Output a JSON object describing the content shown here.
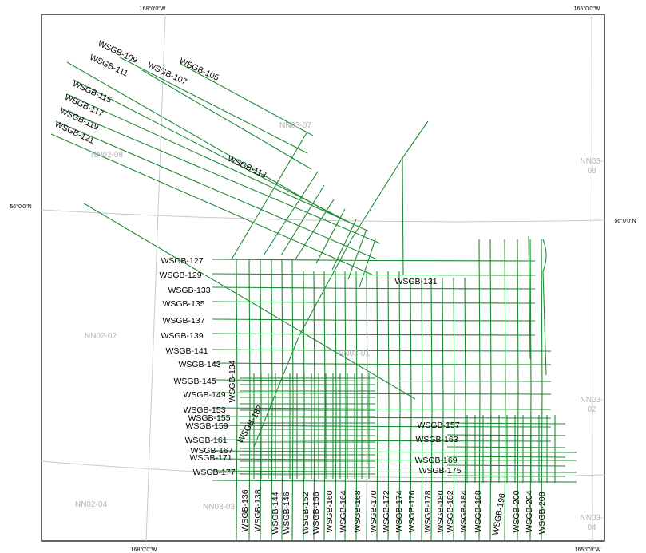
{
  "map": {
    "track_color": "#1f8a34",
    "grid_color": "#c8c8c8",
    "coords": {
      "top_left": "168°0'0\"W",
      "top_right": "165°0'0\"W",
      "bottom_left": "168°0'0\"W",
      "bottom_right": "165°0'0\"W",
      "lat_left": "56°0'0\"N",
      "lat_right": "56°0'0\"N"
    },
    "zones": {
      "nn03_07": "NN03-07",
      "nn02_08": "NN02-08",
      "nn03_08_a": "NN03-",
      "nn03_08_b": "08",
      "nn02_02": "NN02-02",
      "nn03_01": "NN03-01",
      "nn03_02_a": "NN03-",
      "nn03_02_b": "02",
      "nn02_04": "NN02-04",
      "nn03_03": "NN03-03",
      "nn03_04_a": "NN03-",
      "nn03_04_b": "04"
    },
    "track_labels": {
      "wsgb_105": "WSGB-105",
      "wsgb_107": "WSGB-107",
      "wsgb_109": "WSGB-109",
      "wsgb_111": "WSGB-111",
      "wsgb_113": "WSGB-113",
      "wsgb_115": "WSGB-115",
      "wsgb_117": "WSGB-117",
      "wsgb_119": "WSGB-119",
      "wsgb_121": "WSGB-121",
      "wsgb_127": "WSGB-127",
      "wsgb_129": "WSGB-129",
      "wsgb_131": "WSGB-131",
      "wsgb_133": "WSGB-133",
      "wsgb_134": "WSGB-134",
      "wsgb_135": "WSGB-135",
      "wsgb_137": "WSGB-137",
      "wsgb_139": "WSGB-139",
      "wsgb_141": "WSGB-141",
      "wsgb_143": "WSGB-143",
      "wsgb_145": "WSGB-145",
      "wsgb_149": "WSGB-149",
      "wsgb_153": "WSGB-153",
      "wsgb_155": "WSGB-155",
      "wsgb_157": "WSGB-157",
      "wsgb_159": "WSGB-159",
      "wsgb_161": "WSGB-161",
      "wsgb_163": "WSGB-163",
      "wsgb_167": "WSGB-167",
      "wsgb_169": "WSGB-169",
      "wsgb_171": "WSGB-171",
      "wsgb_175": "WSGB-175",
      "wsgb_177": "WSGB-177",
      "wsgb_187": "WSGB-187",
      "wsgb_136": "WSGB-136",
      "wsgb_138": "WSGB-138",
      "wsgb_144": "WSGB-144",
      "wsgb_146": "WSGB-146",
      "wsgb_152": "WSGB-152",
      "wsgb_156": "WSGB-156",
      "wsgb_160": "WSGB-160",
      "wsgb_164": "WSGB-164",
      "wsgb_168": "WSGB-168",
      "wsgb_170": "WSGB-170",
      "wsgb_172": "WSGB-172",
      "wsgb_174": "WSGB-174",
      "wsgb_176": "WSGB-176",
      "wsgb_178": "WSGB-178",
      "wsgb_180": "WSGB-180",
      "wsgb_182": "WSGB-182",
      "wsgb_184": "WSGB-184",
      "wsgb_188": "WSGB-188",
      "wsgb_196": "WSGB-196",
      "wsgb_200": "WSGB-200",
      "wsgb_204": "WSGB-204",
      "wsgb_208": "WSGB-208"
    }
  }
}
